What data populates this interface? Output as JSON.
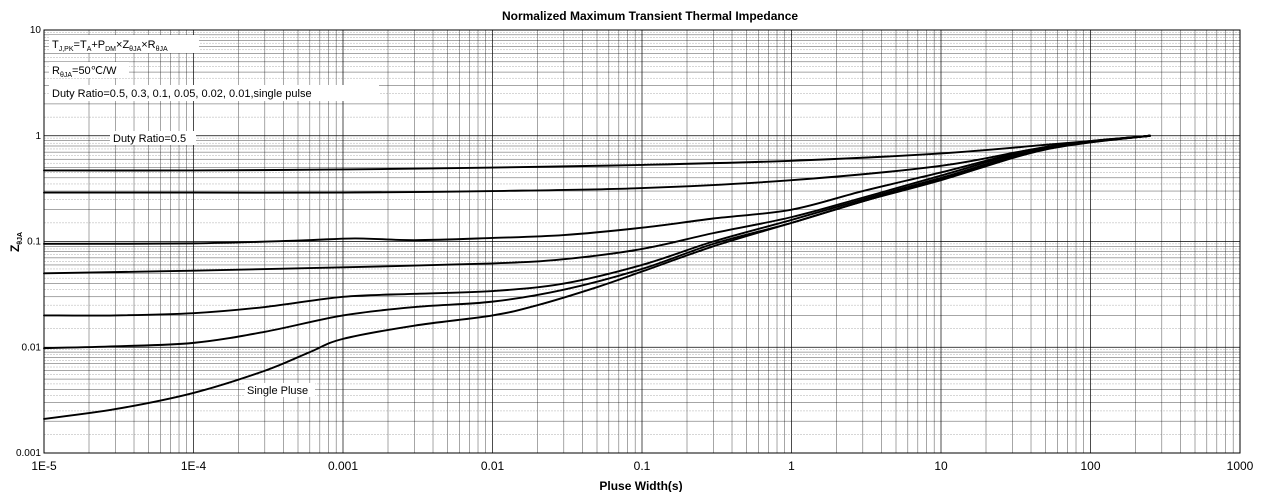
{
  "chart_data": {
    "type": "line",
    "title": "Normalized Maximum Transient Thermal Impedance",
    "xlabel": "Pluse Width(s)",
    "ylabel": {
      "main": "Z",
      "sub": "θJA"
    },
    "x_scale": "log",
    "y_scale": "log",
    "xlim": [
      1e-05,
      1000
    ],
    "ylim": [
      0.001,
      10
    ],
    "x_tick_labels": [
      "1E-5",
      "1E-4",
      "0.001",
      "0.01",
      "0.1",
      "1",
      "10",
      "100",
      "1000"
    ],
    "y_tick_labels": [
      "0.001",
      "0.01",
      "0.1",
      "1",
      "10"
    ],
    "grid": true,
    "annotations": {
      "formula": [
        {
          "text": "T",
          "sub": "J,PK"
        },
        {
          "text": "=T",
          "sub": "A"
        },
        {
          "text": "+P",
          "sub": "DM"
        },
        {
          "text": "×Z",
          "sub": "θJA"
        },
        {
          "text": "×R",
          "sub": "θJA"
        }
      ],
      "rja": {
        "text": "R",
        "sub": "θJA",
        "rest": "=50℃/W"
      },
      "duty_list": "Duty Ratio=0.5, 0.3, 0.1, 0.05, 0.02, 0.01,single pulse",
      "duty_label": "Duty Ratio=0.5",
      "single_label": "Single Pluse"
    },
    "series": [
      {
        "x": [
          1e-05,
          0.0001,
          0.001,
          0.01,
          0.1,
          1,
          10,
          50,
          250
        ],
        "y": [
          0.47,
          0.47,
          0.48,
          0.5,
          0.53,
          0.58,
          0.68,
          0.82,
          1.0
        ]
      },
      {
        "x": [
          1e-05,
          0.0001,
          0.001,
          0.01,
          0.1,
          1,
          10,
          50,
          250
        ],
        "y": [
          0.29,
          0.29,
          0.29,
          0.3,
          0.32,
          0.38,
          0.52,
          0.78,
          1.0
        ]
      },
      {
        "x": [
          1e-05,
          0.0001,
          0.0005,
          0.0012,
          0.003,
          0.01,
          0.03,
          0.1,
          0.3,
          1,
          3,
          10,
          50,
          250
        ],
        "y": [
          0.095,
          0.096,
          0.102,
          0.107,
          0.103,
          0.108,
          0.115,
          0.135,
          0.165,
          0.2,
          0.3,
          0.45,
          0.78,
          1.0
        ]
      },
      {
        "x": [
          1e-05,
          0.0001,
          0.001,
          0.01,
          0.03,
          0.1,
          0.3,
          1,
          3,
          10,
          50,
          250
        ],
        "y": [
          0.05,
          0.053,
          0.057,
          0.062,
          0.068,
          0.085,
          0.12,
          0.17,
          0.26,
          0.42,
          0.78,
          1.0
        ]
      },
      {
        "x": [
          1e-05,
          3e-05,
          0.0001,
          0.0003,
          0.001,
          0.003,
          0.01,
          0.03,
          0.1,
          0.3,
          1,
          3,
          10,
          50,
          250
        ],
        "y": [
          0.02,
          0.02,
          0.021,
          0.024,
          0.03,
          0.032,
          0.034,
          0.04,
          0.06,
          0.1,
          0.16,
          0.25,
          0.4,
          0.76,
          1.0
        ]
      },
      {
        "x": [
          1e-05,
          3e-05,
          0.0001,
          0.0003,
          0.001,
          0.003,
          0.01,
          0.03,
          0.1,
          0.3,
          1,
          3,
          10,
          50,
          250
        ],
        "y": [
          0.0098,
          0.0102,
          0.011,
          0.014,
          0.02,
          0.024,
          0.027,
          0.035,
          0.055,
          0.095,
          0.15,
          0.24,
          0.39,
          0.75,
          1.0
        ]
      },
      {
        "x": [
          1e-05,
          3e-05,
          0.0001,
          0.0003,
          0.0006,
          0.001,
          0.003,
          0.01,
          0.02,
          0.05,
          0.1,
          0.3,
          1,
          3,
          10,
          50,
          250
        ],
        "y": [
          0.0021,
          0.0026,
          0.0037,
          0.006,
          0.009,
          0.012,
          0.016,
          0.02,
          0.025,
          0.037,
          0.052,
          0.09,
          0.15,
          0.24,
          0.38,
          0.74,
          1.0
        ]
      }
    ]
  }
}
